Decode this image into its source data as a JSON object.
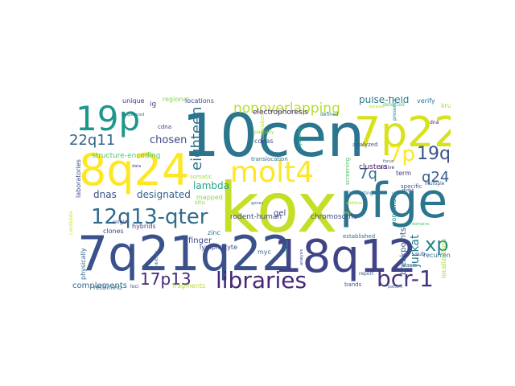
{
  "wordcloud": {
    "palette": "viridis",
    "background": "#ffffff",
    "words": [
      {
        "text": "kox",
        "color": "#c5df27"
      },
      {
        "text": "10cen",
        "color": "#2a768e"
      },
      {
        "text": "7q21q22",
        "color": "#3b518b"
      },
      {
        "text": "7p22",
        "color": "#d7e219"
      },
      {
        "text": "8q24",
        "color": "#fde725"
      },
      {
        "text": "pfge",
        "color": "#2b758e"
      },
      {
        "text": "18q12",
        "color": "#404387"
      },
      {
        "text": "19p",
        "color": "#1f968b"
      },
      {
        "text": "molt4",
        "color": "#fde725"
      },
      {
        "text": "libraries",
        "color": "#482677"
      },
      {
        "text": "bcr-1",
        "color": "#46337e"
      },
      {
        "text": "12q13-qter",
        "color": "#2f6c8e"
      },
      {
        "text": "nonoverlapping",
        "color": "#b5de2b"
      },
      {
        "text": "7p",
        "color": "#fde725"
      },
      {
        "text": "19q",
        "color": "#3b528b"
      },
      {
        "text": "22q11",
        "color": "#33638d"
      },
      {
        "text": "17p13",
        "color": "#482878"
      },
      {
        "text": "eighteen",
        "color": "#2d708e"
      },
      {
        "text": "xp",
        "color": "#25848e"
      },
      {
        "text": "q24",
        "color": "#365c8d"
      },
      {
        "text": "7q",
        "color": "#2c728e"
      },
      {
        "text": "chosen",
        "color": "#3e4a89"
      },
      {
        "text": "designated",
        "color": "#34608d"
      },
      {
        "text": "lambda",
        "color": "#20a386"
      },
      {
        "text": "dnas",
        "color": "#3e4c8a"
      },
      {
        "text": "pulse-field",
        "color": "#2a788e"
      },
      {
        "text": "jurkat",
        "color": "#2a788e"
      },
      {
        "text": "breakpoints",
        "color": "#365d8d"
      },
      {
        "text": "complements",
        "color": "#31678e"
      },
      {
        "text": "structure-encoding",
        "color": "#54c568"
      },
      {
        "text": "finger",
        "color": "#3f4889"
      },
      {
        "text": "gel",
        "color": "#404588"
      },
      {
        "text": "chromosome",
        "color": "#3d4e8a"
      },
      {
        "text": "rodent-human",
        "color": "#3e4a89"
      },
      {
        "text": "electrophoresis",
        "color": "#482475"
      },
      {
        "text": "clusters",
        "color": "#471063"
      },
      {
        "text": "term",
        "color": "#443a83"
      },
      {
        "text": "consensus",
        "color": "#238a8d"
      },
      {
        "text": "recurrent",
        "color": "#2f6b8e"
      },
      {
        "text": "localizations",
        "color": "#a2da37"
      },
      {
        "text": "verify",
        "color": "#2a788e"
      },
      {
        "text": "kruppel-type",
        "color": "#a0da39"
      },
      {
        "text": "ig",
        "color": "#3f4788"
      },
      {
        "text": "regional",
        "color": "#85d54a"
      },
      {
        "text": "locations",
        "color": "#3c4f8a"
      },
      {
        "text": "unique",
        "color": "#46327e"
      },
      {
        "text": "defined",
        "color": "#2c718e"
      },
      {
        "text": "cdnas",
        "color": "#3d4d8a"
      },
      {
        "text": "cdna",
        "color": "#46337f"
      },
      {
        "text": "partially",
        "color": "#9bd93c"
      },
      {
        "text": "correlation",
        "color": "#bddf26"
      },
      {
        "text": "genome",
        "color": "#25ab82"
      },
      {
        "text": "translocation",
        "color": "#2e6f8e"
      },
      {
        "text": "screening",
        "color": "#4ac16d"
      },
      {
        "text": "analyzed",
        "color": "#3b528b"
      },
      {
        "text": "active",
        "color": "#453781"
      },
      {
        "text": "specific",
        "color": "#375a8c"
      },
      {
        "text": "multiple",
        "color": "#38598c"
      },
      {
        "text": "detected",
        "color": "#4ec36b"
      },
      {
        "text": "isolated",
        "color": "#b8de29"
      },
      {
        "text": "presence",
        "color": "#24878e"
      },
      {
        "text": "dna",
        "color": "#482071"
      },
      {
        "text": "laboratories",
        "color": "#3c4f8a"
      },
      {
        "text": "candidate",
        "color": "#d0e11c"
      },
      {
        "text": "physically",
        "color": "#2f6c8e"
      },
      {
        "text": "sequenced",
        "color": "#2c728e"
      },
      {
        "text": "data",
        "color": "#433d84"
      },
      {
        "text": "somatic",
        "color": "#a5db36"
      },
      {
        "text": "situ",
        "color": "#90d743"
      },
      {
        "text": "mapped",
        "color": "#90d743"
      },
      {
        "text": "single",
        "color": "#3e4989"
      },
      {
        "text": "hybrids",
        "color": "#433e85"
      },
      {
        "text": "clones",
        "color": "#3e4a89"
      },
      {
        "text": "zinc",
        "color": "#2c738e"
      },
      {
        "text": "lymphocyte",
        "color": "#3e4a89"
      },
      {
        "text": "retaining",
        "color": "#2c728e"
      },
      {
        "text": "loci",
        "color": "#3f4788"
      },
      {
        "text": "distinct",
        "color": "#2e6f8e"
      },
      {
        "text": "fragments",
        "color": "#b5de2b"
      },
      {
        "text": "myc",
        "color": "#31688e"
      },
      {
        "text": "genes",
        "color": "#2a768e"
      },
      {
        "text": "well",
        "color": "#a0da39"
      },
      {
        "text": "previous",
        "color": "#1f988b"
      },
      {
        "text": "analysis",
        "color": "#3f4788"
      },
      {
        "text": "established",
        "color": "#2e6e8e"
      },
      {
        "text": "report",
        "color": "#3a538b"
      },
      {
        "text": "bands",
        "color": "#38598c"
      },
      {
        "text": "additive",
        "color": "#b2dd2d"
      },
      {
        "text": "indicating",
        "color": "#2d718e"
      },
      {
        "text": "focus",
        "color": "#3b528b"
      },
      {
        "text": "sub",
        "color": "#3c4f8a"
      },
      {
        "text": "basis",
        "color": "#2f6c8e"
      },
      {
        "text": "domains",
        "color": "#4ec36b"
      },
      {
        "text": "pattern",
        "color": "#2f6c8e"
      },
      {
        "text": "probe",
        "color": "#3e4a89"
      }
    ]
  }
}
